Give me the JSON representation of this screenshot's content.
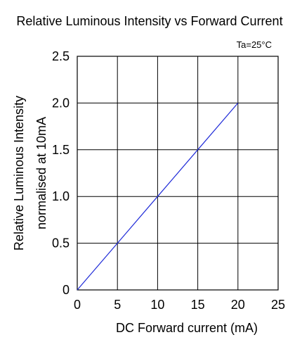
{
  "chart_data": {
    "type": "line",
    "title": "Relative Luminous Intensity vs Forward Current",
    "annotation": "Ta=25°C",
    "xlabel": "DC Forward current (mA)",
    "ylabel_lines": [
      "Relative Luminous Intensity",
      "normalised at 10mA"
    ],
    "xlim": [
      0,
      25
    ],
    "ylim": [
      0,
      2.5
    ],
    "x_ticks": [
      0,
      5,
      10,
      15,
      20,
      25
    ],
    "x_tick_labels": [
      "0",
      "5",
      "10",
      "15",
      "20",
      "25"
    ],
    "y_ticks": [
      0,
      0.5,
      1.0,
      1.5,
      2.0,
      2.5
    ],
    "y_tick_labels": [
      "0",
      "0.5",
      "1.0",
      "1.5",
      "2.0",
      "2.5"
    ],
    "grid": true,
    "series": [
      {
        "color": "#1f2bd8",
        "points": [
          [
            0,
            0
          ],
          [
            5,
            0.5
          ],
          [
            10,
            1.0
          ],
          [
            15,
            1.5
          ],
          [
            20,
            2.0
          ]
        ]
      }
    ]
  }
}
